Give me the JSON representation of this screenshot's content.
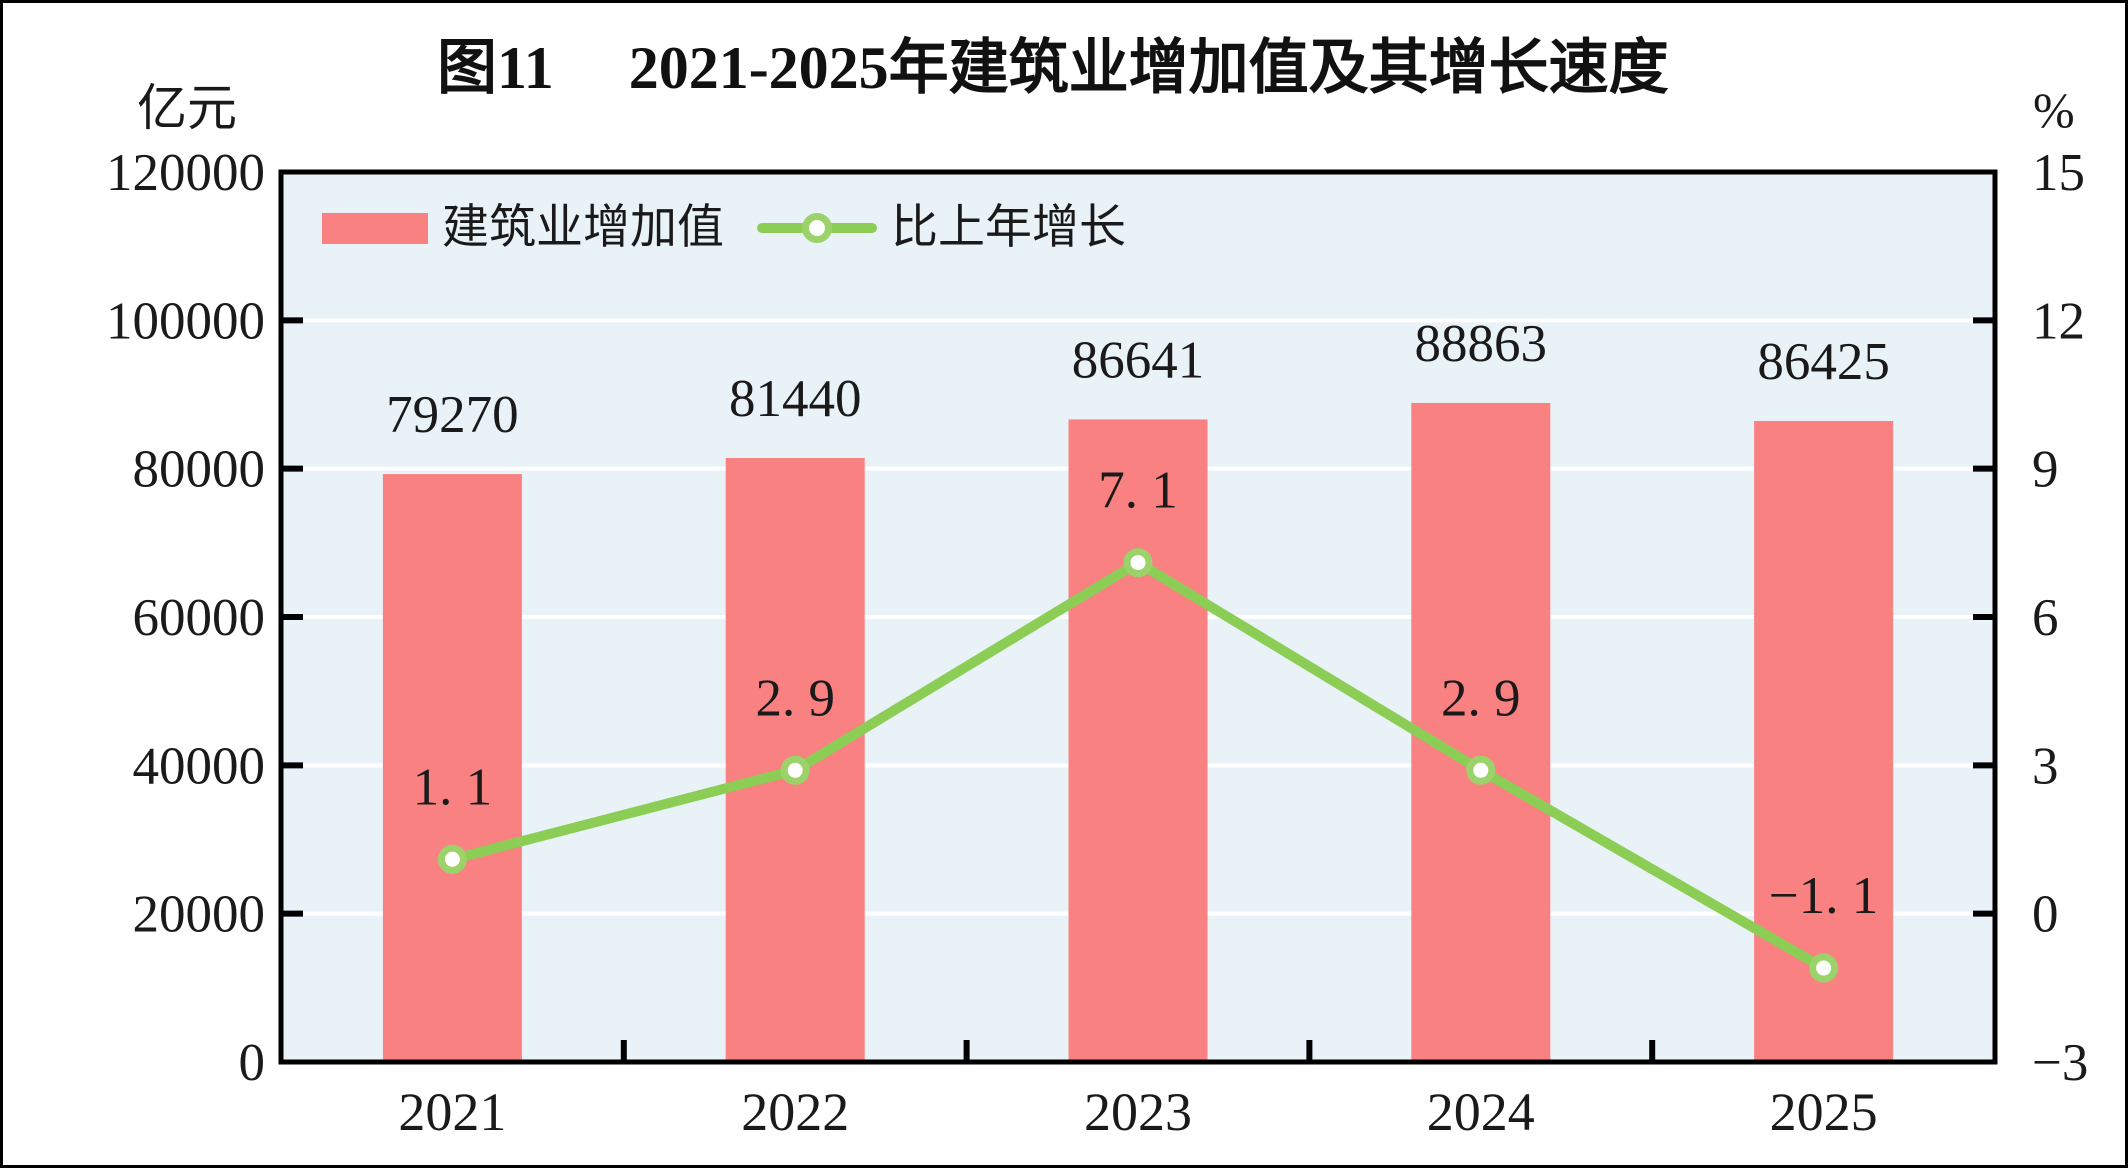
{
  "chart_data": {
    "type": "bar+line",
    "title": "图11　 2021-2025年建筑业增加值及其增长速度",
    "categories": [
      "2021",
      "2022",
      "2023",
      "2024",
      "2025"
    ],
    "series": [
      {
        "name": "建筑业增加值",
        "type": "bar",
        "axis": "left",
        "unit": "亿元",
        "values": [
          79270,
          81440,
          86641,
          88863,
          86425
        ],
        "color": "#f98181"
      },
      {
        "name": "比上年增长",
        "type": "line",
        "axis": "right",
        "unit": "%",
        "values": [
          1.1,
          2.9,
          7.1,
          2.9,
          -1.1
        ],
        "color": "#8ccd55",
        "marker": "circle-white-fill"
      }
    ],
    "left_axis": {
      "unit": "亿元",
      "min": 0,
      "max": 120000,
      "step": 20000,
      "ticks": [
        0,
        20000,
        40000,
        60000,
        80000,
        100000,
        120000
      ]
    },
    "right_axis": {
      "unit": "%",
      "min": -3,
      "max": 15,
      "step": 3,
      "ticks": [
        -3,
        0,
        3,
        6,
        9,
        12,
        15
      ]
    },
    "grid": "horizontal-white-lines",
    "legend_position": "top-left-inside",
    "colors": {
      "plot_bg": "#e9f2f7",
      "grid": "#ffffff",
      "axis": "#000000",
      "text": "#1a1a1a",
      "marker_ring": "#9bd36a",
      "marker_fill": "#ffffff"
    }
  }
}
